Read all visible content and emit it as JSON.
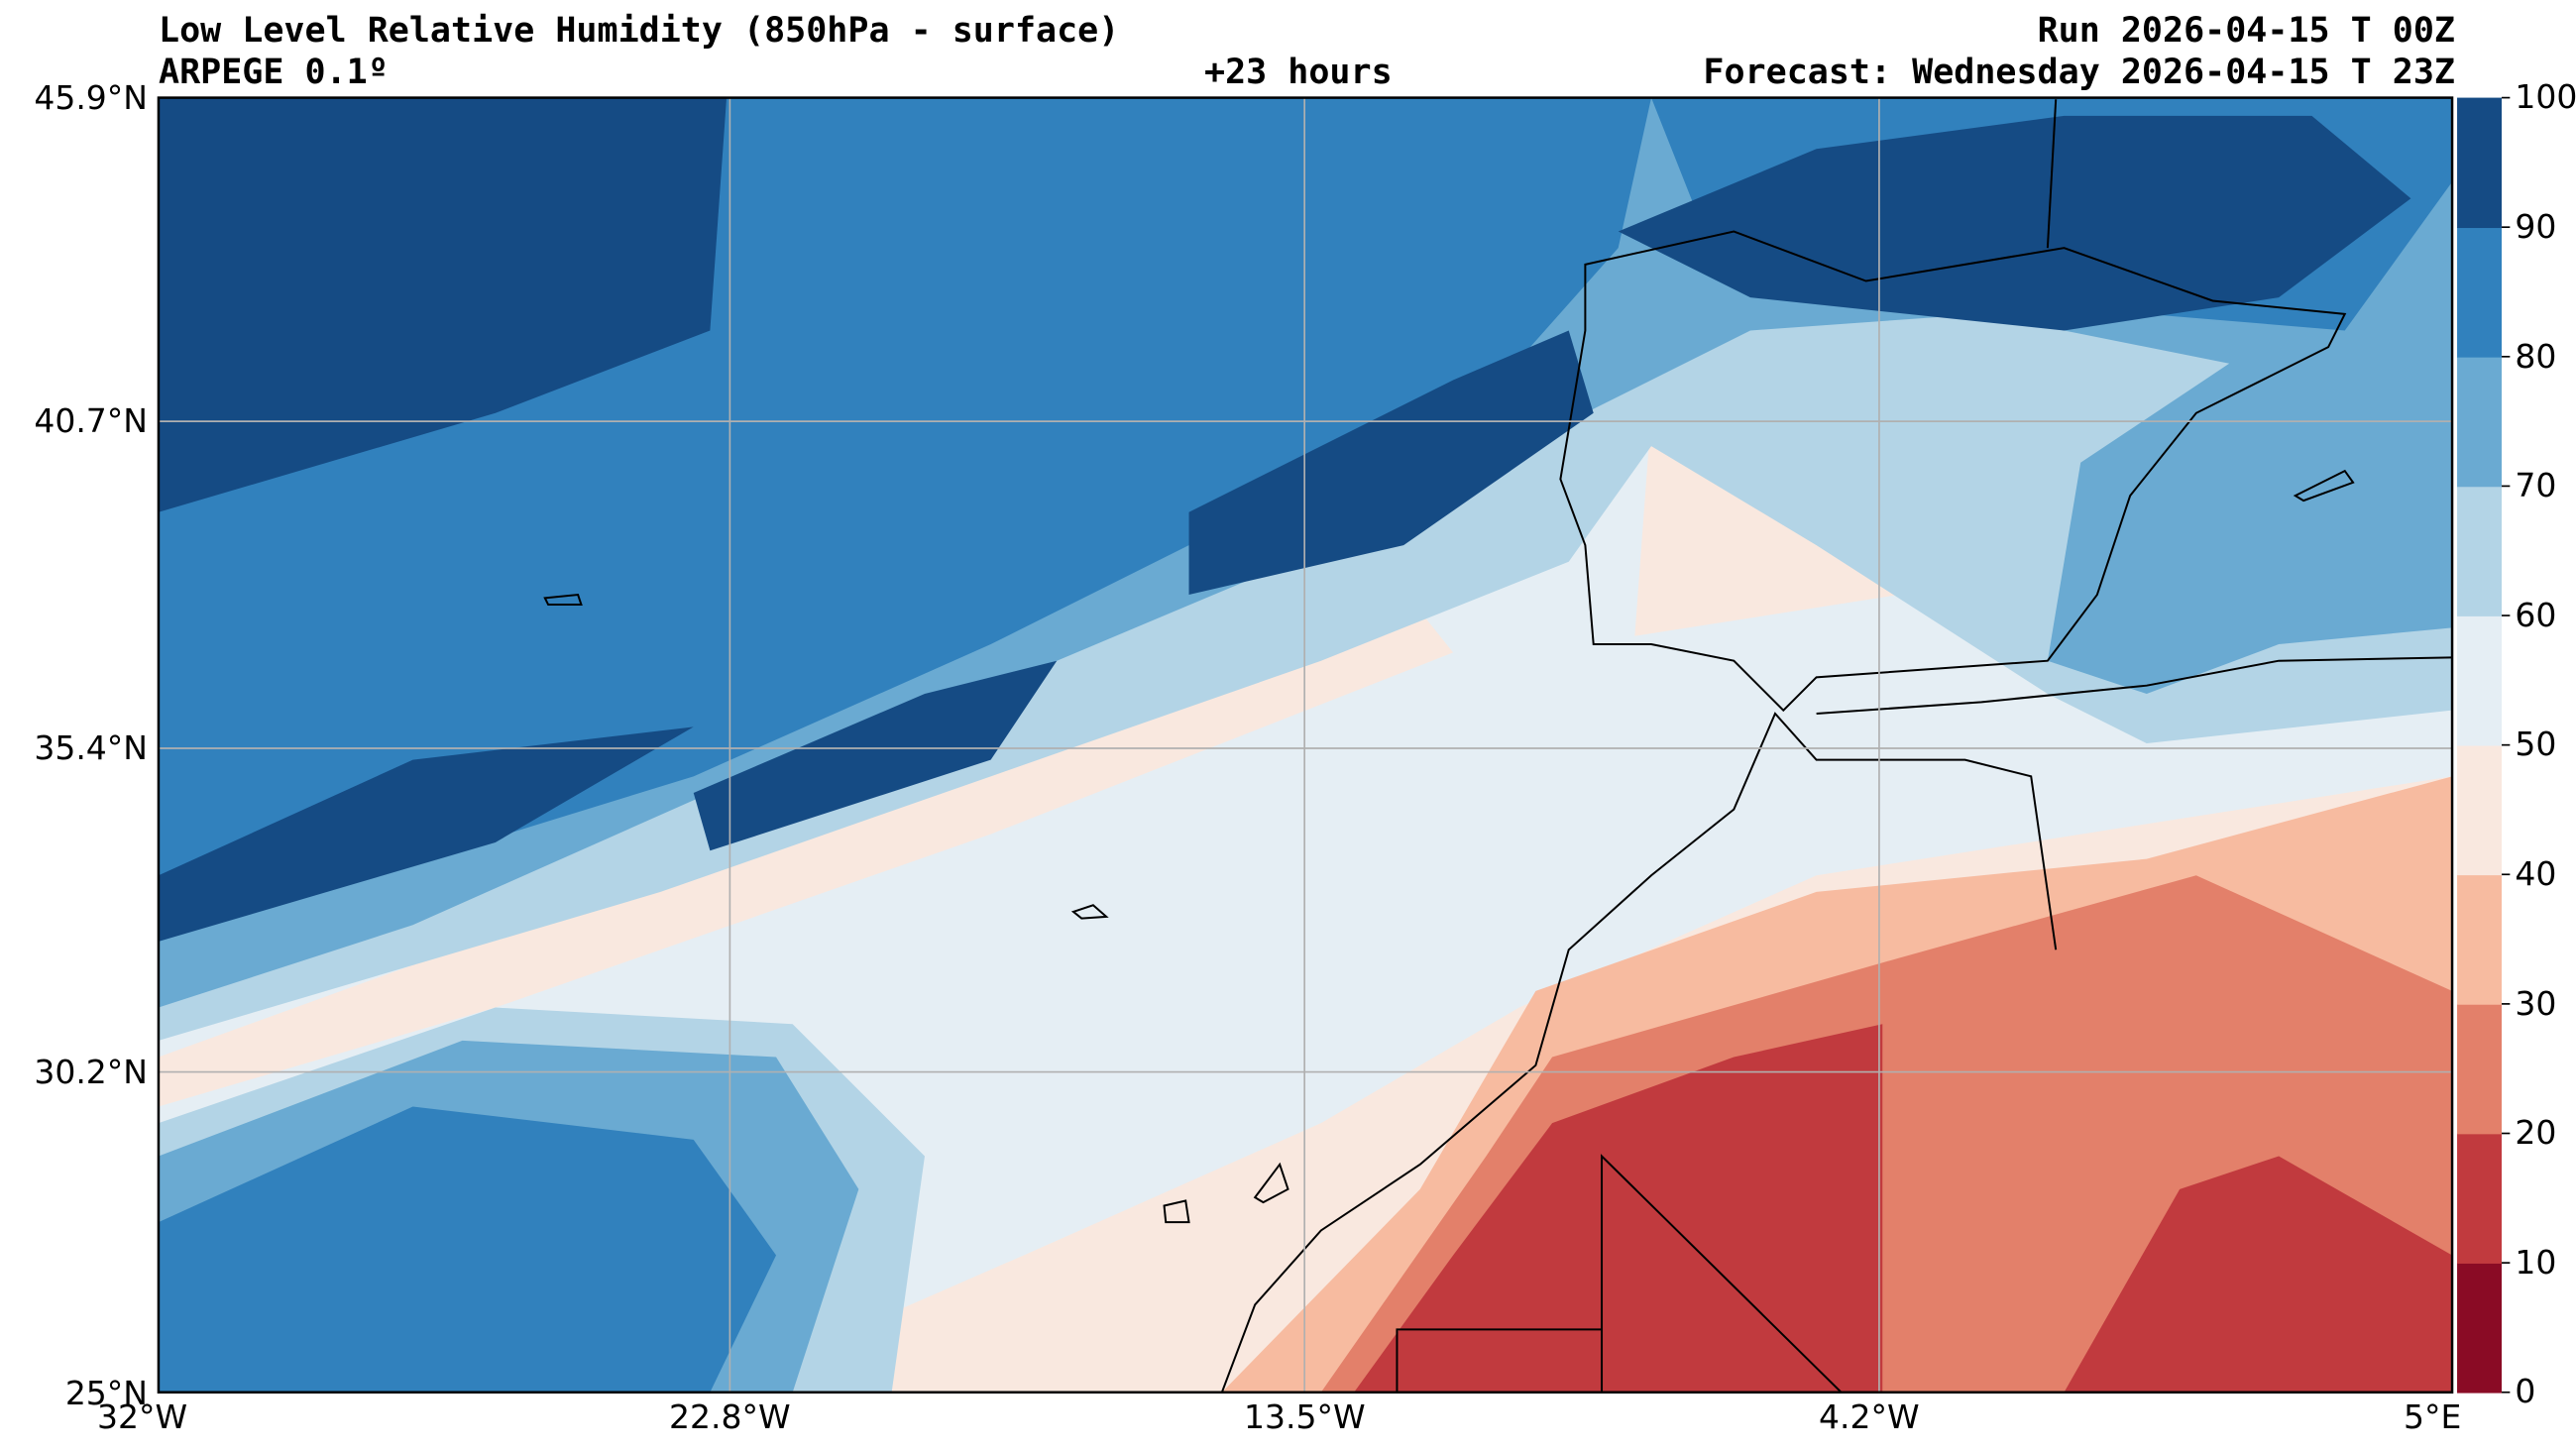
{
  "header": {
    "title": "Low Level Relative Humidity (850hPa - surface)",
    "model": "ARPEGE 0.1º",
    "lead": "+23 hours",
    "run": "Run 2026-04-15 T 00Z",
    "forecast": "Forecast: Wednesday 2026-04-15 T 23Z"
  },
  "chart_data": {
    "type": "heatmap",
    "title": "Low Level Relative Humidity (850hPa - surface)",
    "xlabel": "",
    "ylabel": "",
    "x_ticks": [
      "32°W",
      "22.8°W",
      "13.5°W",
      "4.2°W",
      "5°E"
    ],
    "y_ticks": [
      "45.9°N",
      "40.7°N",
      "35.4°N",
      "30.2°N",
      "25°N"
    ],
    "xlim": [
      -32,
      5
    ],
    "ylim": [
      25,
      45.9
    ],
    "grid": true,
    "colorbar": {
      "levels": [
        0,
        10,
        20,
        30,
        40,
        50,
        60,
        70,
        80,
        90,
        100
      ],
      "tick_labels": [
        "0",
        "10",
        "20",
        "30",
        "40",
        "50",
        "60",
        "70",
        "80",
        "90",
        "100"
      ],
      "colors": [
        "#8a0b25",
        "#c13a3e",
        "#e3806a",
        "#f7bba0",
        "#f9e8df",
        "#e5eef4",
        "#b3d4e6",
        "#6aaad2",
        "#3181bd",
        "#154b84"
      ]
    },
    "description_fields": {
      "units": "%"
    }
  }
}
